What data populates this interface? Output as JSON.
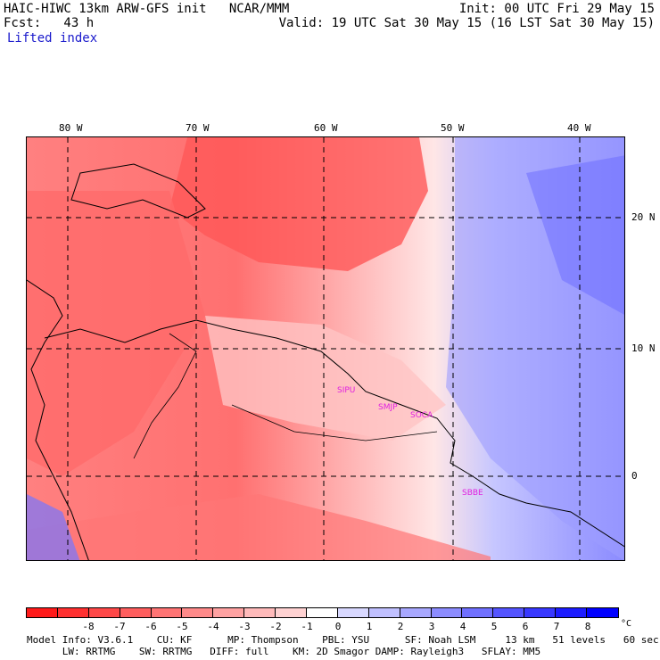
{
  "header": {
    "title_left": "HAIC-HIWC 13km ARW-GFS init   NCAR/MMM",
    "init": "Init: 00 UTC Fri 29 May 15",
    "fcst": "Fcst:   43 h",
    "valid": "Valid: 19 UTC Sat 30 May 15 (16 LST Sat 30 May 15)",
    "field": "Lifted index"
  },
  "map": {
    "lon_labels": [
      "80 W",
      "70 W",
      "60 W",
      "50 W",
      "40 W"
    ],
    "lat_labels": [
      "20 N",
      "10 N",
      "0"
    ],
    "stations": [
      "SIPU",
      "SMJP",
      "SOCA",
      "SBBE"
    ]
  },
  "colorbar": {
    "unit": "°C",
    "ticks": [
      "-8",
      "-7",
      "-6",
      "-5",
      "-4",
      "-3",
      "-2",
      "-1",
      "0",
      "1",
      "2",
      "3",
      "4",
      "5",
      "6",
      "7",
      "8"
    ],
    "colors": [
      "#ff1a1a",
      "#ff3030",
      "#ff4848",
      "#ff5e5e",
      "#ff7474",
      "#ff8a8a",
      "#ffa2a2",
      "#ffbaba",
      "#ffd2d2",
      "#ffffff",
      "#d8d8ff",
      "#c0c0ff",
      "#a8a8ff",
      "#8c8cff",
      "#7070ff",
      "#5454ff",
      "#3838ff",
      "#1c1cff",
      "#0000ff"
    ]
  },
  "footer": {
    "line1": "Model Info: V3.6.1    CU: KF      MP: Thompson    PBL: YSU      SF: Noah LSM     13 km   51 levels   60 sec",
    "line2": "      LW: RRTMG    SW: RRTMG   DIFF: full    KM: 2D Smagor DAMP: Rayleigh3   SFLAY: MM5"
  }
}
